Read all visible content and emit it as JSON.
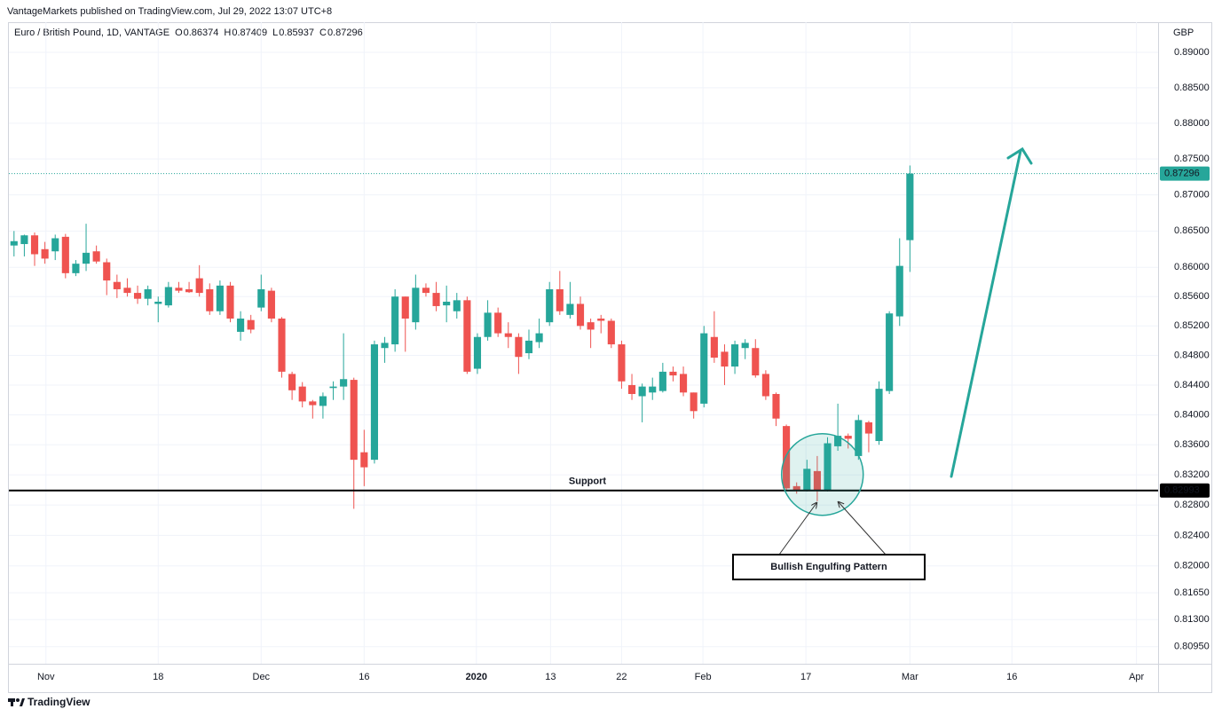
{
  "header": {
    "published": "VantageMarkets published on TradingView.com, Jul 29, 2022 13:07 UTC+8",
    "symbol": "Euro / British Pound, 1D, VANTAGE",
    "ohlc_letters": [
      "O",
      "H",
      "L",
      "C"
    ],
    "currency": "GBP"
  },
  "footer": {
    "brand": "TradingView"
  },
  "chart_data": {
    "type": "candlestick",
    "log": true,
    "grid": true,
    "up_color": "#26a69a",
    "down_color": "#ef5350",
    "xlim": [
      -0.5,
      111.1
    ],
    "xticks": [
      {
        "value": 3.1,
        "label": "Nov"
      },
      {
        "value": 14,
        "label": "18"
      },
      {
        "value": 24,
        "label": "Dec"
      },
      {
        "value": 34,
        "label": "16"
      },
      {
        "value": 44.9,
        "label": "2020"
      },
      {
        "value": 52.1,
        "label": "13"
      },
      {
        "value": 59,
        "label": "22"
      },
      {
        "value": 66.9,
        "label": "Feb"
      },
      {
        "value": 76.9,
        "label": "17"
      },
      {
        "value": 87,
        "label": "Mar"
      },
      {
        "value": 96.9,
        "label": "16"
      },
      {
        "value": 109,
        "label": "Apr"
      }
    ],
    "ylim": [
      0.8073,
      0.8943
    ],
    "yticks": [
      {
        "value": 0.89,
        "label": "0.89000"
      },
      {
        "value": 0.885,
        "label": "0.88500"
      },
      {
        "value": 0.88,
        "label": "0.88000"
      },
      {
        "value": 0.875,
        "label": "0.87500"
      },
      {
        "value": 0.87,
        "label": "0.87000"
      },
      {
        "value": 0.865,
        "label": "0.86500"
      },
      {
        "value": 0.86,
        "label": "0.86000"
      },
      {
        "value": 0.856,
        "label": "0.85600"
      },
      {
        "value": 0.852,
        "label": "0.85200"
      },
      {
        "value": 0.848,
        "label": "0.84800"
      },
      {
        "value": 0.844,
        "label": "0.84400"
      },
      {
        "value": 0.84,
        "label": "0.84000"
      },
      {
        "value": 0.836,
        "label": "0.83600"
      },
      {
        "value": 0.832,
        "label": "0.83200"
      },
      {
        "value": 0.828,
        "label": "0.82800"
      },
      {
        "value": 0.824,
        "label": "0.82400"
      },
      {
        "value": 0.82,
        "label": "0.82000"
      },
      {
        "value": 0.8165,
        "label": "0.81650"
      },
      {
        "value": 0.813,
        "label": "0.81300"
      },
      {
        "value": 0.8095,
        "label": "0.80950"
      }
    ],
    "open": [
      0.863,
      0.8632,
      0.8644,
      0.8625,
      0.8622,
      0.8642,
      0.8592,
      0.8605,
      0.8622,
      0.8607,
      0.858,
      0.8572,
      0.8565,
      0.8557,
      0.855,
      0.8548,
      0.8572,
      0.857,
      0.8585,
      0.857,
      0.854,
      0.8575,
      0.8512,
      0.8528,
      0.8545,
      0.8568,
      0.853,
      0.8455,
      0.8438,
      0.8418,
      0.8412,
      0.8436,
      0.8438,
      0.8447,
      0.835,
      0.834,
      0.849,
      0.8495,
      0.856,
      0.8525,
      0.8572,
      0.8565,
      0.8548,
      0.854,
      0.8555,
      0.8462,
      0.8505,
      0.8538,
      0.851,
      0.8505,
      0.8483,
      0.8498,
      0.8525,
      0.857,
      0.8535,
      0.855,
      0.8525,
      0.853,
      0.8527,
      0.8495,
      0.844,
      0.8425,
      0.843,
      0.8432,
      0.8458,
      0.8455,
      0.843,
      0.8415,
      0.8505,
      0.8485,
      0.8465,
      0.849,
      0.849,
      0.8455,
      0.8428,
      0.8385,
      0.8305,
      0.83,
      0.8325,
      0.83,
      0.8358,
      0.8372,
      0.8345,
      0.839,
      0.8365,
      0.8432,
      0.8533,
      0.86374
    ],
    "high": [
      0.865,
      0.8645,
      0.8648,
      0.8635,
      0.8645,
      0.8646,
      0.861,
      0.866,
      0.863,
      0.8612,
      0.859,
      0.8585,
      0.8575,
      0.8575,
      0.856,
      0.858,
      0.858,
      0.858,
      0.8603,
      0.8578,
      0.8582,
      0.858,
      0.854,
      0.8535,
      0.859,
      0.8572,
      0.8532,
      0.8458,
      0.8444,
      0.842,
      0.843,
      0.8445,
      0.851,
      0.845,
      0.838,
      0.85,
      0.8505,
      0.857,
      0.856,
      0.859,
      0.8578,
      0.858,
      0.8575,
      0.8565,
      0.856,
      0.851,
      0.8555,
      0.8545,
      0.8525,
      0.851,
      0.8515,
      0.853,
      0.858,
      0.8595,
      0.858,
      0.856,
      0.853,
      0.8535,
      0.853,
      0.85,
      0.8455,
      0.8442,
      0.845,
      0.847,
      0.8465,
      0.8465,
      0.843,
      0.852,
      0.854,
      0.8495,
      0.85,
      0.8502,
      0.8502,
      0.846,
      0.843,
      0.8387,
      0.831,
      0.834,
      0.8345,
      0.837,
      0.8415,
      0.8375,
      0.84,
      0.8392,
      0.8445,
      0.854,
      0.864,
      0.87409
    ],
    "low": [
      0.8615,
      0.8615,
      0.8602,
      0.8605,
      0.861,
      0.8585,
      0.8588,
      0.8595,
      0.8605,
      0.8562,
      0.8558,
      0.856,
      0.855,
      0.8548,
      0.8525,
      0.8545,
      0.8565,
      0.8565,
      0.856,
      0.8535,
      0.8535,
      0.8525,
      0.85,
      0.851,
      0.854,
      0.8525,
      0.845,
      0.842,
      0.841,
      0.8395,
      0.8395,
      0.842,
      0.842,
      0.8275,
      0.8305,
      0.8335,
      0.847,
      0.8485,
      0.8485,
      0.8515,
      0.856,
      0.854,
      0.8525,
      0.853,
      0.8455,
      0.8455,
      0.85,
      0.8505,
      0.849,
      0.8455,
      0.8475,
      0.849,
      0.852,
      0.8535,
      0.853,
      0.8515,
      0.849,
      0.851,
      0.849,
      0.8435,
      0.842,
      0.839,
      0.842,
      0.843,
      0.8445,
      0.8425,
      0.8395,
      0.841,
      0.847,
      0.844,
      0.8455,
      0.8475,
      0.845,
      0.842,
      0.8385,
      0.83,
      0.8295,
      0.8298,
      0.8285,
      0.8298,
      0.8352,
      0.8355,
      0.834,
      0.835,
      0.836,
      0.8428,
      0.852,
      0.85937
    ],
    "close": [
      0.8636,
      0.8644,
      0.8618,
      0.8612,
      0.864,
      0.8592,
      0.8605,
      0.862,
      0.8608,
      0.8582,
      0.857,
      0.8565,
      0.8557,
      0.857,
      0.8553,
      0.8573,
      0.8568,
      0.8566,
      0.8565,
      0.854,
      0.8575,
      0.853,
      0.853,
      0.8515,
      0.857,
      0.853,
      0.8458,
      0.8433,
      0.8418,
      0.8413,
      0.8425,
      0.8438,
      0.8448,
      0.834,
      0.833,
      0.8495,
      0.8497,
      0.856,
      0.853,
      0.8572,
      0.8565,
      0.8547,
      0.8553,
      0.8555,
      0.8458,
      0.8505,
      0.8538,
      0.851,
      0.8505,
      0.8478,
      0.85,
      0.851,
      0.857,
      0.854,
      0.855,
      0.852,
      0.8515,
      0.8527,
      0.8495,
      0.8445,
      0.8428,
      0.8438,
      0.8438,
      0.8458,
      0.8453,
      0.843,
      0.8405,
      0.851,
      0.8477,
      0.8465,
      0.8495,
      0.8497,
      0.8453,
      0.8425,
      0.8395,
      0.8302,
      0.83,
      0.8328,
      0.83,
      0.8362,
      0.8372,
      0.8368,
      0.8393,
      0.8375,
      0.8435,
      0.8537,
      0.8602,
      0.87296
    ],
    "last_price": 0.87296,
    "support": {
      "value": 0.82993,
      "text": "Support"
    },
    "annotation": "Bullish Engulfing Pattern"
  }
}
